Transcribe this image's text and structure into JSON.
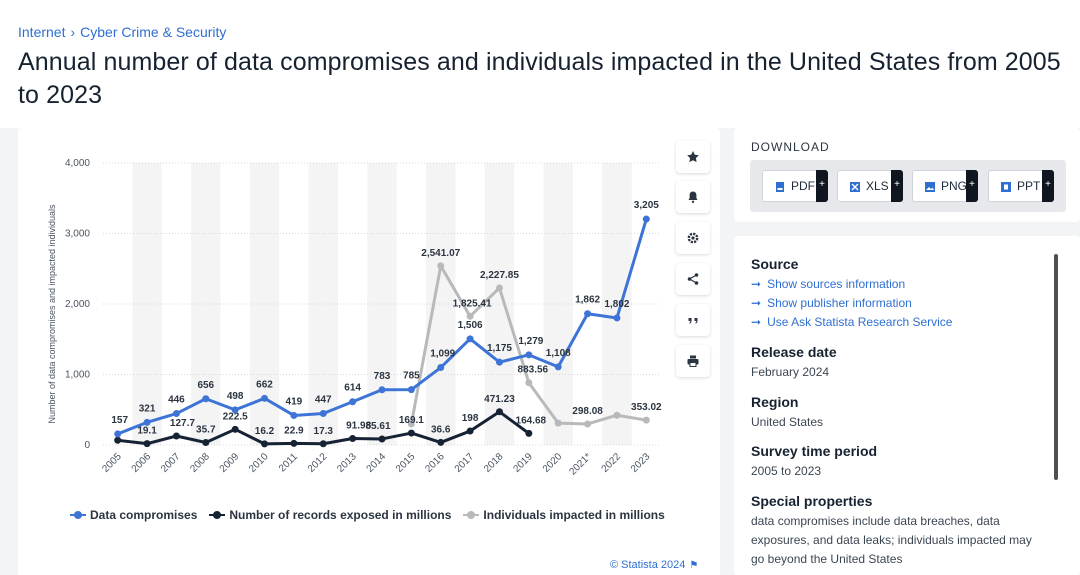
{
  "breadcrumb": {
    "first": "Internet",
    "second": "Cyber Crime & Security"
  },
  "title": "Annual number of data compromises and individuals impacted in the United States from 2005 to 2023",
  "chart_data": {
    "type": "line",
    "title": "",
    "ylabel": "Number of data compromises and impacted individuals",
    "xlabel": "",
    "ylim": [
      0,
      4000
    ],
    "yticks": [
      "0",
      "1,000",
      "2,000",
      "3,000",
      "4,000"
    ],
    "categories": [
      "2005",
      "2006",
      "2007",
      "2008",
      "2009",
      "2010",
      "2011",
      "2012",
      "2013",
      "2014",
      "2015",
      "2016",
      "2017",
      "2018",
      "2019",
      "2020",
      "2021*",
      "2022",
      "2023"
    ],
    "legend_position": "bottom",
    "series": [
      {
        "name": "Data compromises",
        "color": "#3d74d6",
        "values": [
          157,
          321,
          446,
          656,
          498,
          662,
          419,
          447,
          614,
          783,
          785,
          1099,
          1506,
          1175,
          1279,
          1108,
          1862,
          1802,
          3205
        ],
        "labels": [
          "157",
          "321",
          "446",
          "656",
          "498",
          "662",
          "419",
          "447",
          "614",
          "783",
          "785",
          "1,099",
          "1,506",
          "1,175",
          "1,279",
          "1,108",
          "1,862",
          "1,802",
          "3,205"
        ]
      },
      {
        "name": "Number of records exposed in millions",
        "color": "#162335",
        "values": [
          66.9,
          19.1,
          127.7,
          35.7,
          222.5,
          16.2,
          22.9,
          17.3,
          91.98,
          85.61,
          169.1,
          36.6,
          198,
          471.23,
          164.68,
          null,
          null,
          null,
          null
        ],
        "labels": [
          "",
          "19.1",
          "127.7",
          "35.7",
          "222.5",
          "16.2",
          "22.9",
          "17.3",
          "91.98",
          "85.61",
          "169.1",
          "36.6",
          "198",
          "471.23",
          "164.68",
          "",
          "",
          "",
          ""
        ]
      },
      {
        "name": "Individuals impacted in millions",
        "color": "#b8b9bb",
        "values": [
          null,
          null,
          null,
          null,
          null,
          null,
          null,
          null,
          null,
          null,
          300,
          2541.07,
          1825.41,
          2227.85,
          883.56,
          310.12,
          298.08,
          422.14,
          353.02
        ],
        "labels": [
          "",
          "",
          "",
          "",
          "",
          "",
          "",
          "",
          "",
          "",
          "",
          "2,541.07",
          "1,825.41",
          "2,227.85",
          "883.56",
          "",
          "298.08",
          "",
          "353.02"
        ]
      }
    ]
  },
  "copyright": "© Statista 2024",
  "download": {
    "title": "DOWNLOAD",
    "buttons": [
      {
        "label": "PDF",
        "icon": "pdf-icon"
      },
      {
        "label": "XLS",
        "icon": "xls-icon"
      },
      {
        "label": "PNG",
        "icon": "png-icon"
      },
      {
        "label": "PPT",
        "icon": "ppt-icon"
      }
    ]
  },
  "info": {
    "source_title": "Source",
    "links": [
      "Show sources information",
      "Show publisher information",
      "Use Ask Statista Research Service"
    ],
    "release_title": "Release date",
    "release_value": "February 2024",
    "region_title": "Region",
    "region_value": "United States",
    "survey_title": "Survey time period",
    "survey_value": "2005 to 2023",
    "special_title": "Special properties",
    "special_value": "data compromises include data breaches, data exposures, and data leaks; individuals impacted may go beyond the United States"
  },
  "toolbar": [
    "star-icon",
    "bell-icon",
    "gear-icon",
    "share-icon",
    "quote-icon",
    "print-icon"
  ],
  "colors": {
    "accent": "#2f6fd1",
    "compromises": "#3d74d6",
    "records": "#162335",
    "individuals": "#b8b9bb"
  }
}
